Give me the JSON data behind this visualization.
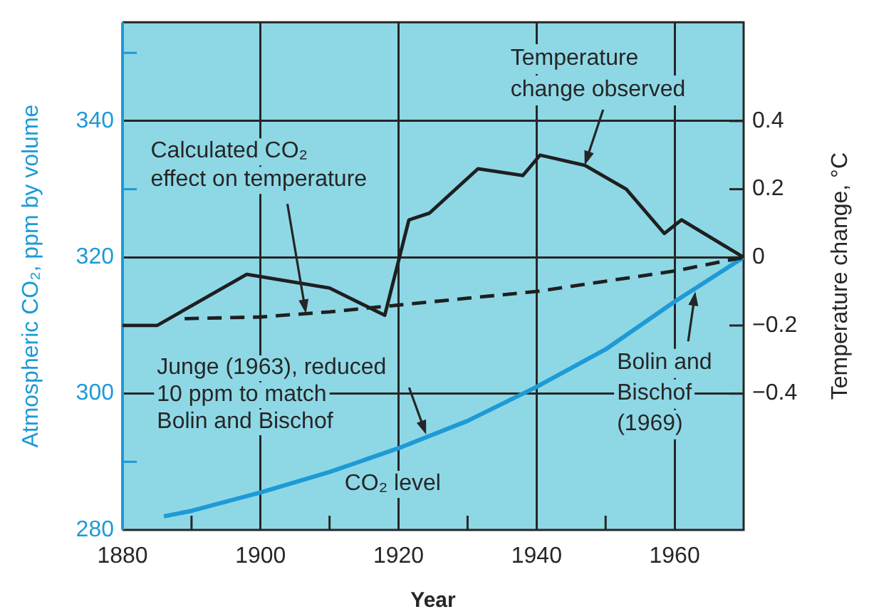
{
  "chart_data": {
    "type": "line",
    "xlabel": "Year",
    "ylabel": "Atmospheric CO₂, ppm by volume",
    "y2label": "Temperature change, °C",
    "xlim": [
      1880,
      1970
    ],
    "xticks": [
      1880,
      {
        "value": 1890,
        "label": null
      },
      1900,
      {
        "value": 1910,
        "label": null
      },
      1920,
      {
        "value": 1930,
        "label": null
      },
      1940,
      {
        "value": 1950,
        "label": null
      },
      1960
    ],
    "ylim": [
      280,
      354.5
    ],
    "yticks": [
      280,
      {
        "value": 290,
        "label": null
      },
      300,
      {
        "value": 310,
        "label": null
      },
      320,
      {
        "value": 330,
        "label": null
      },
      340,
      {
        "value": 350,
        "label": null
      }
    ],
    "y2lim": [
      -0.8,
      0.69
    ],
    "y2ticks": [
      {
        "value": -0.4,
        "label": "−0.4"
      },
      {
        "value": -0.2,
        "label": "−0.2"
      },
      0,
      0.2,
      0.4
    ],
    "grid": true,
    "series": [
      {
        "name": "Temperature change observed",
        "color": "#1f1f1f",
        "axis": "y2",
        "x": [
          1880,
          1885,
          1898,
          1910,
          1918,
          1921.5,
          1924.5,
          1931.5,
          1938,
          1940.5,
          1947,
          1953,
          1958.5,
          1961,
          1970
        ],
        "values": [
          -0.2,
          -0.2,
          -0.05,
          -0.09,
          -0.17,
          0.11,
          0.13,
          0.26,
          0.24,
          0.3,
          0.27,
          0.2,
          0.07,
          0.11,
          0
        ]
      },
      {
        "name": "Calculated CO₂ effect on temperature",
        "color": "#1f1f1f",
        "axis": "y2",
        "line_style": "dashed",
        "x": [
          1889,
          1900,
          1910,
          1920,
          1930,
          1940,
          1950,
          1960,
          1970
        ],
        "values": [
          -0.18,
          -0.175,
          -0.16,
          -0.14,
          -0.12,
          -0.1,
          -0.07,
          -0.04,
          0
        ]
      },
      {
        "name": "CO₂ level",
        "color": "#1e9ad6",
        "axis": "y",
        "x": [
          1886,
          1890,
          1900,
          1910,
          1920,
          1930,
          1940,
          1950,
          1960,
          1970
        ],
        "values": [
          282,
          282.8,
          285.5,
          288.5,
          292,
          296,
          301,
          306.5,
          313.5,
          320
        ]
      }
    ],
    "annotations": [
      {
        "text": "Junge (1963), reduced 10 ppm to match Bolin and Bischof",
        "x": 1924,
        "y": 294
      },
      {
        "text": "Bolin and Bischof (1969)",
        "x": 1963,
        "y": 315
      }
    ]
  }
}
